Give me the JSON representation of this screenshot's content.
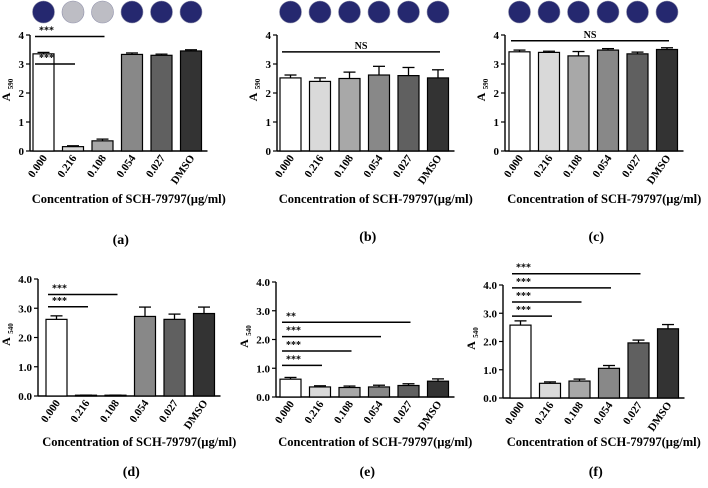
{
  "figure": {
    "categories": [
      "0.000",
      "0.216",
      "0.108",
      "0.054",
      "0.027",
      "DMSO"
    ],
    "xlabel": "Concentration of SCH-79797(µg/ml)",
    "bar_fills": [
      "#ffffff",
      "#d9d9d9",
      "#a8a8a8",
      "#888888",
      "#606060",
      "#333333"
    ],
    "well_color": "#25286f",
    "well_light_color": "#bdbdc4",
    "axis_color": "#000000"
  },
  "chart_data": [
    {
      "type": "bar",
      "panel_label": "(a)",
      "ylabel_main": "A",
      "ylabel_sub": "590",
      "ylim": [
        0,
        4
      ],
      "yticks": [
        "0",
        "1",
        "2",
        "3",
        "4"
      ],
      "values": [
        3.35,
        0.15,
        0.35,
        3.33,
        3.3,
        3.45
      ],
      "errors": [
        0.05,
        0.03,
        0.06,
        0.05,
        0.04,
        0.04
      ],
      "wells": [
        "dark",
        "light",
        "light",
        "dark",
        "dark",
        "dark"
      ],
      "annotations": [
        {
          "label": "***",
          "from": 0,
          "to": 1,
          "y": 3.0
        },
        {
          "label": "***",
          "from": 0,
          "to": 2,
          "y": 3.95
        }
      ]
    },
    {
      "type": "bar",
      "panel_label": "(b)",
      "ylabel_main": "A",
      "ylabel_sub": "590",
      "ylim": [
        0,
        4
      ],
      "yticks": [
        "0",
        "1",
        "2",
        "3",
        "4"
      ],
      "values": [
        2.52,
        2.4,
        2.5,
        2.62,
        2.6,
        2.52
      ],
      "errors": [
        0.1,
        0.12,
        0.22,
        0.3,
        0.28,
        0.28
      ],
      "wells": [
        "dark",
        "dark",
        "dark",
        "dark",
        "dark",
        "dark"
      ],
      "annotations": [
        {
          "label": "NS",
          "from": 0,
          "to": 5,
          "y": 3.42
        }
      ]
    },
    {
      "type": "bar",
      "panel_label": "(c)",
      "ylabel_main": "A",
      "ylabel_sub": "590",
      "ylim": [
        0,
        4
      ],
      "yticks": [
        "0",
        "1",
        "2",
        "3",
        "4"
      ],
      "values": [
        3.42,
        3.4,
        3.28,
        3.48,
        3.35,
        3.5
      ],
      "errors": [
        0.06,
        0.04,
        0.15,
        0.05,
        0.06,
        0.06
      ],
      "wells": [
        "dark",
        "dark",
        "dark",
        "dark",
        "dark",
        "dark"
      ],
      "annotations": [
        {
          "label": "NS",
          "from": 0,
          "to": 5,
          "y": 3.8
        }
      ]
    },
    {
      "type": "bar",
      "panel_label": "(d)",
      "ylabel_main": "A",
      "ylabel_sub": "540",
      "ylim": [
        0,
        4
      ],
      "yticks": [
        "0.0",
        "1.0",
        "2.0",
        "3.0",
        "4.0"
      ],
      "values": [
        2.62,
        0.02,
        0.02,
        2.72,
        2.62,
        2.82
      ],
      "errors": [
        0.12,
        0.01,
        0.01,
        0.32,
        0.18,
        0.22
      ],
      "wells": [],
      "annotations": [
        {
          "label": "***",
          "from": 0,
          "to": 1,
          "y": 3.05
        },
        {
          "label": "***",
          "from": 0,
          "to": 2,
          "y": 3.47
        }
      ]
    },
    {
      "type": "bar",
      "panel_label": "(e)",
      "ylabel_main": "A",
      "ylabel_sub": "540",
      "ylim": [
        0,
        4
      ],
      "yticks": [
        "0.0",
        "1.0",
        "2.0",
        "3.0",
        "4.0"
      ],
      "values": [
        0.62,
        0.35,
        0.33,
        0.35,
        0.4,
        0.55
      ],
      "errors": [
        0.06,
        0.04,
        0.05,
        0.06,
        0.06,
        0.08
      ],
      "wells": [],
      "annotations": [
        {
          "label": "***",
          "from": 0,
          "to": 1,
          "y": 1.1
        },
        {
          "label": "***",
          "from": 0,
          "to": 2,
          "y": 1.6
        },
        {
          "label": "***",
          "from": 0,
          "to": 3,
          "y": 2.1
        },
        {
          "label": "**",
          "from": 0,
          "to": 4,
          "y": 2.6
        }
      ]
    },
    {
      "type": "bar",
      "panel_label": "(f)",
      "ylabel_main": "A",
      "ylabel_sub": "540",
      "ylim": [
        0,
        4
      ],
      "yticks": [
        "0.0",
        "1.0",
        "2.0",
        "3.0",
        "4.0"
      ],
      "values": [
        2.58,
        0.52,
        0.6,
        1.05,
        1.95,
        2.45
      ],
      "errors": [
        0.15,
        0.05,
        0.07,
        0.1,
        0.1,
        0.15
      ],
      "wells": [],
      "annotations": [
        {
          "label": "***",
          "from": 0,
          "to": 1,
          "y": 2.9
        },
        {
          "label": "***",
          "from": 0,
          "to": 2,
          "y": 3.4
        },
        {
          "label": "***",
          "from": 0,
          "to": 3,
          "y": 3.9
        },
        {
          "label": "***",
          "from": 0,
          "to": 4,
          "y": 4.4
        }
      ]
    }
  ]
}
